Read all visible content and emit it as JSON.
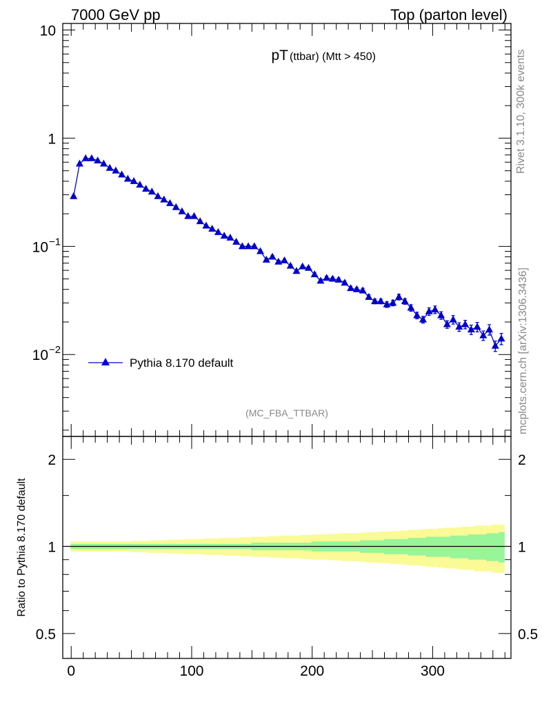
{
  "header": {
    "left": "7000 GeV pp",
    "right": "Top (parton level)"
  },
  "side_labels": {
    "top": "Rivet 3.1.10,  300k events",
    "bottom": "mcplots.cern.ch [arXiv:1306.3436]"
  },
  "analysis_id": "(MC_FBA_TTBAR)",
  "colors": {
    "series": "#0000cc",
    "band_inner": "#99f599",
    "band_outer": "#fafa96",
    "grey_text": "#888888"
  },
  "chart_data": [
    {
      "type": "line",
      "title": "pT",
      "title_sub": "(ttbar) (Mtt > 450)",
      "yscale": "log",
      "xlim": [
        -7,
        365
      ],
      "ylim": [
        0.00175,
        11.5
      ],
      "y_ticks": [
        {
          "value": 10,
          "label": "10"
        },
        {
          "value": 1,
          "label": "1"
        },
        {
          "value": 0.1,
          "base": "10",
          "exp": "−1"
        },
        {
          "value": 0.01,
          "base": "10",
          "exp": "−2"
        }
      ],
      "legend": {
        "label": "Pythia 8.170 default",
        "position": "bottom-left"
      },
      "series": [
        {
          "name": "Pythia 8.170 default",
          "marker": "triangle-up",
          "x": [
            2,
            7,
            12,
            17,
            22,
            27,
            32,
            37,
            42,
            47,
            52,
            57,
            62,
            67,
            72,
            77,
            82,
            87,
            92,
            97,
            102,
            107,
            112,
            117,
            122,
            127,
            132,
            137,
            142,
            147,
            152,
            157,
            162,
            167,
            172,
            177,
            182,
            187,
            192,
            197,
            202,
            207,
            212,
            217,
            222,
            227,
            232,
            237,
            242,
            247,
            252,
            257,
            262,
            267,
            272,
            277,
            282,
            287,
            292,
            297,
            302,
            307,
            312,
            317,
            322,
            327,
            332,
            337,
            342,
            347,
            352,
            357
          ],
          "y": [
            0.29,
            0.58,
            0.65,
            0.65,
            0.62,
            0.58,
            0.53,
            0.5,
            0.46,
            0.42,
            0.4,
            0.37,
            0.34,
            0.32,
            0.29,
            0.27,
            0.25,
            0.23,
            0.21,
            0.19,
            0.19,
            0.17,
            0.155,
            0.145,
            0.135,
            0.125,
            0.12,
            0.11,
            0.1,
            0.1,
            0.1,
            0.09,
            0.075,
            0.08,
            0.072,
            0.074,
            0.066,
            0.059,
            0.065,
            0.063,
            0.055,
            0.048,
            0.051,
            0.05,
            0.049,
            0.046,
            0.041,
            0.04,
            0.039,
            0.034,
            0.031,
            0.031,
            0.029,
            0.03,
            0.034,
            0.031,
            0.027,
            0.023,
            0.021,
            0.025,
            0.026,
            0.023,
            0.019,
            0.021,
            0.018,
            0.019,
            0.017,
            0.018,
            0.015,
            0.017,
            0.012,
            0.014
          ],
          "yerr_frac": [
            0.02,
            0.02,
            0.02,
            0.02,
            0.02,
            0.02,
            0.02,
            0.02,
            0.02,
            0.02,
            0.02,
            0.02,
            0.02,
            0.02,
            0.02,
            0.02,
            0.02,
            0.02,
            0.02,
            0.02,
            0.02,
            0.02,
            0.02,
            0.02,
            0.02,
            0.02,
            0.02,
            0.02,
            0.02,
            0.02,
            0.03,
            0.03,
            0.03,
            0.03,
            0.03,
            0.03,
            0.03,
            0.03,
            0.03,
            0.03,
            0.04,
            0.04,
            0.04,
            0.04,
            0.04,
            0.04,
            0.04,
            0.04,
            0.05,
            0.05,
            0.05,
            0.05,
            0.06,
            0.06,
            0.06,
            0.06,
            0.07,
            0.07,
            0.07,
            0.08,
            0.08,
            0.08,
            0.08,
            0.09,
            0.09,
            0.09,
            0.1,
            0.1,
            0.1,
            0.11,
            0.11,
            0.12
          ]
        }
      ]
    },
    {
      "type": "area",
      "ylabel": "Ratio to Pythia 8.170 default",
      "yscale": "log",
      "xlim": [
        -7,
        365
      ],
      "ylim": [
        0.41,
        2.4
      ],
      "x_ticks": [
        0,
        100,
        200,
        300
      ],
      "y_ticks": [
        {
          "value": 2,
          "label": "2"
        },
        {
          "value": 1,
          "label": "1"
        },
        {
          "value": 0.5,
          "label": "0.5"
        }
      ],
      "reference_line": 1,
      "bands": {
        "x": [
          2,
          7,
          12,
          17,
          22,
          27,
          32,
          37,
          42,
          47,
          52,
          57,
          62,
          67,
          72,
          77,
          82,
          87,
          92,
          97,
          102,
          107,
          112,
          117,
          122,
          127,
          132,
          137,
          142,
          147,
          152,
          157,
          162,
          167,
          172,
          177,
          182,
          187,
          192,
          197,
          202,
          207,
          212,
          217,
          222,
          227,
          232,
          237,
          242,
          247,
          252,
          257,
          262,
          267,
          272,
          277,
          282,
          287,
          292,
          297,
          302,
          307,
          312,
          317,
          322,
          327,
          332,
          337,
          342,
          347,
          352,
          357
        ],
        "inner_halfwidth": [
          0.02,
          0.02,
          0.02,
          0.02,
          0.02,
          0.02,
          0.02,
          0.02,
          0.02,
          0.02,
          0.02,
          0.02,
          0.02,
          0.02,
          0.02,
          0.02,
          0.02,
          0.02,
          0.02,
          0.02,
          0.02,
          0.02,
          0.02,
          0.02,
          0.02,
          0.02,
          0.02,
          0.02,
          0.02,
          0.02,
          0.03,
          0.03,
          0.03,
          0.03,
          0.03,
          0.03,
          0.03,
          0.03,
          0.03,
          0.03,
          0.04,
          0.04,
          0.04,
          0.04,
          0.04,
          0.04,
          0.04,
          0.04,
          0.05,
          0.05,
          0.05,
          0.05,
          0.06,
          0.06,
          0.06,
          0.06,
          0.07,
          0.07,
          0.07,
          0.08,
          0.08,
          0.08,
          0.08,
          0.09,
          0.09,
          0.09,
          0.1,
          0.1,
          0.1,
          0.11,
          0.11,
          0.12
        ],
        "outer_halfwidth": [
          0.04,
          0.04,
          0.04,
          0.04,
          0.04,
          0.04,
          0.04,
          0.04,
          0.04,
          0.04,
          0.045,
          0.045,
          0.045,
          0.05,
          0.05,
          0.05,
          0.055,
          0.055,
          0.055,
          0.06,
          0.06,
          0.06,
          0.065,
          0.065,
          0.065,
          0.07,
          0.07,
          0.07,
          0.075,
          0.075,
          0.08,
          0.08,
          0.08,
          0.085,
          0.085,
          0.09,
          0.09,
          0.09,
          0.095,
          0.095,
          0.1,
          0.1,
          0.1,
          0.105,
          0.105,
          0.11,
          0.11,
          0.11,
          0.115,
          0.12,
          0.12,
          0.125,
          0.125,
          0.13,
          0.13,
          0.135,
          0.14,
          0.14,
          0.145,
          0.15,
          0.15,
          0.155,
          0.16,
          0.16,
          0.165,
          0.17,
          0.17,
          0.18,
          0.18,
          0.18,
          0.19,
          0.19
        ]
      }
    }
  ]
}
